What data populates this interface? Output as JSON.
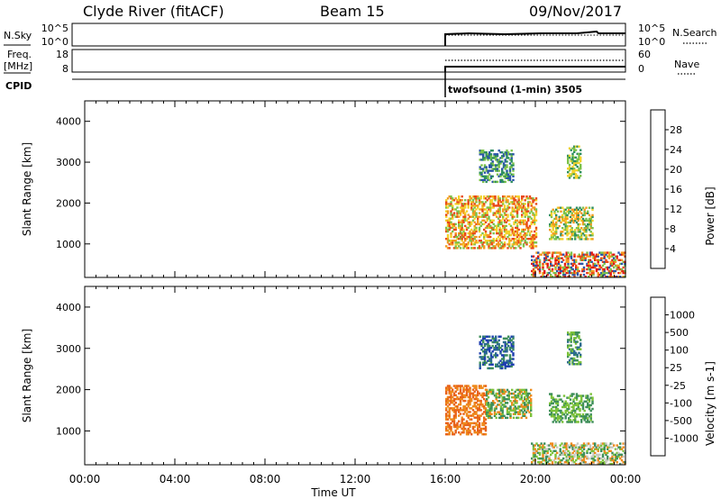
{
  "header": {
    "station": "Clyde River (fitACF)",
    "beam": "Beam 15",
    "date": "09/Nov/2017"
  },
  "summary": {
    "left_label_top": "N.Sky",
    "left_label_mid_1": "Freq.",
    "left_label_mid_2": "[MHz]",
    "left_label_bottom": "CPID",
    "right_label_top": "N.Search",
    "right_label_mid": "Nave",
    "nsky_ticks": [
      "10^5",
      "10^0"
    ],
    "nsearch_ticks": [
      "10^5",
      "10^0"
    ],
    "freq_ticks": [
      "18",
      "8"
    ],
    "nave_ticks": [
      "60",
      "0"
    ],
    "cpid_text": "twofsound (1-min) 3505"
  },
  "chart_data": [
    {
      "type": "heatmap",
      "name": "power",
      "ylabel": "Slant Range [km]",
      "ylim": [
        180,
        4500
      ],
      "yticks": [
        1000,
        2000,
        3000,
        4000
      ],
      "xlim": [
        0,
        24
      ],
      "colorbar": {
        "label": "Power [dB]",
        "ticks": [
          "4",
          "8",
          "12",
          "16",
          "20",
          "24",
          "28"
        ],
        "colors": [
          "#1b1bd8",
          "#2a55a8",
          "#2e8e5e",
          "#7cc24a",
          "#f2d22c",
          "#f29a1e",
          "#e84818",
          "#e01414"
        ]
      },
      "patches": [
        {
          "t": [
            16.0,
            20.0
          ],
          "r": [
            880,
            2150
          ],
          "mix": [
            3,
            4,
            5,
            6
          ]
        },
        {
          "t": [
            20.6,
            22.5
          ],
          "r": [
            1100,
            1900
          ],
          "mix": [
            2,
            3,
            4,
            5
          ]
        },
        {
          "t": [
            19.8,
            24.0
          ],
          "r": [
            180,
            800
          ],
          "mix": [
            1,
            3,
            5,
            6,
            7
          ]
        },
        {
          "t": [
            17.5,
            19.0
          ],
          "r": [
            2500,
            3300
          ],
          "mix": [
            1,
            2,
            3
          ]
        },
        {
          "t": [
            21.4,
            22.0
          ],
          "r": [
            2600,
            3400
          ],
          "mix": [
            2,
            3,
            4
          ]
        }
      ]
    },
    {
      "type": "heatmap",
      "name": "velocity",
      "ylabel": "Slant Range [km]",
      "ylim": [
        180,
        4500
      ],
      "yticks": [
        1000,
        2000,
        3000,
        4000
      ],
      "xlim": [
        0,
        24
      ],
      "xticks": [
        "00:00",
        "04:00",
        "08:00",
        "12:00",
        "16:00",
        "20:00",
        "00:00"
      ],
      "xlabel": "Time UT",
      "colorbar": {
        "label": "Velocity [m s-1]",
        "ticks": [
          "1000",
          "500",
          "100",
          "25",
          "-25",
          "-100",
          "-500",
          "-1000"
        ],
        "colors": [
          "#1f3fb0",
          "#2b6b8e",
          "#3f8f5a",
          "#7cc23a",
          "#c8c8c0",
          "#f2c21e",
          "#ee8a1c",
          "#e8621a",
          "#e01414"
        ]
      },
      "patches": [
        {
          "t": [
            16.0,
            17.8
          ],
          "r": [
            900,
            2100
          ],
          "mix": [
            6,
            7,
            6,
            7
          ]
        },
        {
          "t": [
            17.8,
            19.8
          ],
          "r": [
            1300,
            2000
          ],
          "mix": [
            2,
            3,
            6
          ]
        },
        {
          "t": [
            20.6,
            22.5
          ],
          "r": [
            1200,
            1900
          ],
          "mix": [
            2,
            3
          ]
        },
        {
          "t": [
            19.8,
            24.0
          ],
          "r": [
            180,
            700
          ],
          "mix": [
            4,
            6,
            2,
            3
          ]
        },
        {
          "t": [
            17.5,
            19.0
          ],
          "r": [
            2500,
            3300
          ],
          "mix": [
            0,
            1,
            2
          ]
        },
        {
          "t": [
            21.4,
            22.0
          ],
          "r": [
            2600,
            3400
          ],
          "mix": [
            1,
            2,
            3
          ]
        }
      ]
    }
  ]
}
